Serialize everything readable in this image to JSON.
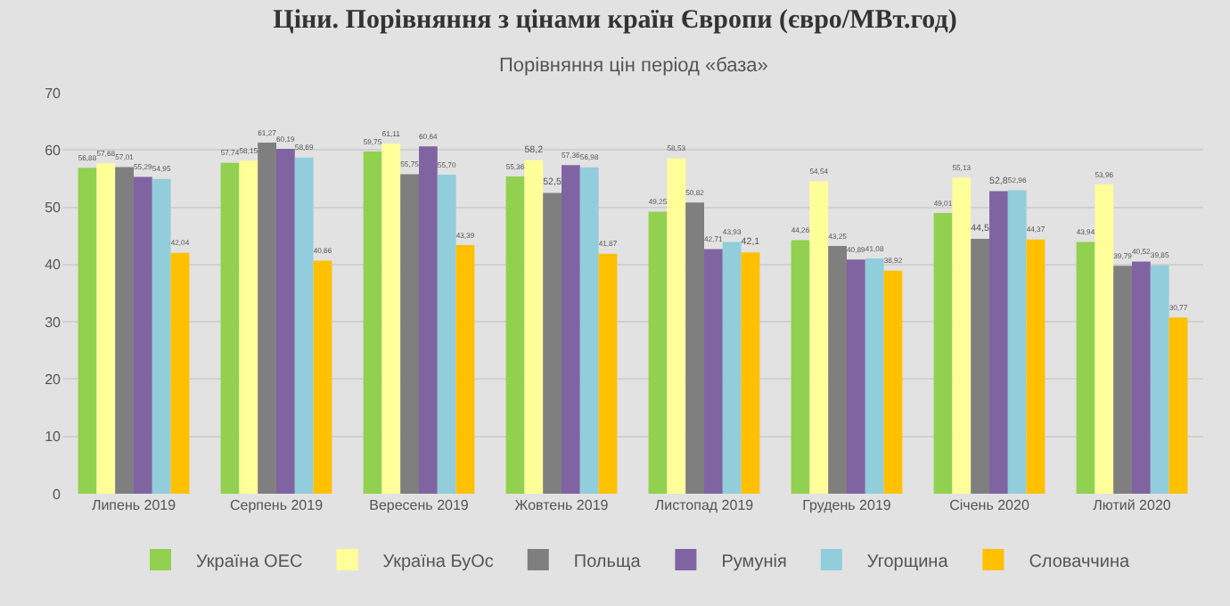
{
  "chart_data": {
    "type": "bar",
    "title": "Ціни. Порівняння з цінами країн Європи (євро/МВт.год)",
    "subtitle": "Порівняння цін період «база»",
    "categories": [
      "Липень 2019",
      "Серпень 2019",
      "Вересень 2019",
      "Жовтень 2019",
      "Листопад 2019",
      "Грудень 2019",
      "Січень 2020",
      "Лютий 2020"
    ],
    "series": [
      {
        "name": "Україна ОЕС",
        "color": "#92d050",
        "values": [
          56.88,
          57.74,
          59.75,
          55.36,
          49.25,
          44.26,
          49.01,
          43.94
        ],
        "value_labels": [
          "56,88",
          "57,74",
          "59,75",
          "55,36",
          "49,25",
          "44,26",
          "49,01",
          "43,94"
        ]
      },
      {
        "name": "Україна БуОс",
        "color": "#ffff99",
        "values": [
          57.68,
          58.15,
          61.11,
          58.2,
          58.53,
          54.54,
          55.13,
          53.96
        ],
        "value_labels": [
          "57,68",
          "58,15",
          "61,11",
          "58,2",
          "58,53",
          "54,54",
          "55,13",
          "53,96"
        ]
      },
      {
        "name": "Польща",
        "color": "#7f7f7f",
        "values": [
          57.01,
          61.27,
          55.75,
          52.5,
          50.82,
          43.25,
          44.5,
          39.79
        ],
        "value_labels": [
          "57,01",
          "61,27",
          "55,75",
          "52,5",
          "50,82",
          "43,25",
          "44,5",
          "39,79"
        ]
      },
      {
        "name": "Румунія",
        "color": "#8064a2",
        "values": [
          55.29,
          60.19,
          60.64,
          57.36,
          42.71,
          40.89,
          52.8,
          40.52
        ],
        "value_labels": [
          "55,29",
          "60,19",
          "60,64",
          "57,36",
          "42,71",
          "40,89",
          "52,8",
          "40,52"
        ]
      },
      {
        "name": "Угорщина",
        "color": "#92cddc",
        "values": [
          54.95,
          58.69,
          55.7,
          56.98,
          43.93,
          41.08,
          52.96,
          39.85
        ],
        "value_labels": [
          "54,95",
          "58,69",
          "55,70",
          "56,98",
          "43,93",
          "41,08",
          "52,96",
          "39,85"
        ]
      },
      {
        "name": "Словаччина",
        "color": "#ffc000",
        "values": [
          42.04,
          40.66,
          43.39,
          41.87,
          42.1,
          38.92,
          44.37,
          30.77
        ],
        "value_labels": [
          "42,04",
          "40,66",
          "43,39",
          "41,87",
          "42,1",
          "38,92",
          "44,37",
          "30,77"
        ]
      }
    ],
    "ylim": [
      0,
      70
    ],
    "yticks": [
      0,
      10,
      20,
      30,
      40,
      50,
      60,
      70
    ],
    "grid": "y",
    "legend": "bottom"
  }
}
